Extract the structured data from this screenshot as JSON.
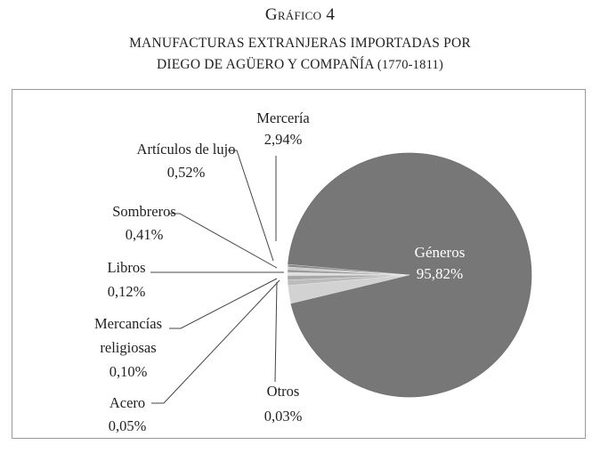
{
  "figure_label": "Gráfico 4",
  "title_line1": "MANUFACTURAS EXTRANJERAS IMPORTADAS POR",
  "title_line2": "DIEGO DE AGÜERO Y COMPAÑÍA",
  "title_years": "(1770-1811)",
  "chart_data": {
    "type": "pie",
    "title": "MANUFACTURAS EXTRANJERAS IMPORTADAS POR DIEGO DE AGÜERO Y COMPAÑÍA (1770-1811)",
    "slices": [
      {
        "label": "Géneros",
        "value": 95.82,
        "value_label": "95,82%",
        "color": "#777777"
      },
      {
        "label": "Mercería",
        "value": 2.94,
        "value_label": "2,94%",
        "color": "#d2d2d2"
      },
      {
        "label": "Artículos de lujo",
        "value": 0.52,
        "value_label": "0,52%",
        "color": "#bcbcbc"
      },
      {
        "label": "Sombreros",
        "value": 0.41,
        "value_label": "0,41%",
        "color": "#a8a8a8"
      },
      {
        "label": "Libros",
        "value": 0.12,
        "value_label": "0,12%",
        "color": "#e0e0e0"
      },
      {
        "label": "Mercancías religiosas",
        "label_lines": [
          "Mercancías",
          "religiosas"
        ],
        "value": 0.1,
        "value_label": "0,10%",
        "color": "#999999"
      },
      {
        "label": "Acero",
        "value": 0.05,
        "value_label": "0,05%",
        "color": "#c8c8c8"
      },
      {
        "label": "Otros",
        "value": 0.03,
        "value_label": "0,03%",
        "color": "#8a8a8a"
      }
    ]
  }
}
